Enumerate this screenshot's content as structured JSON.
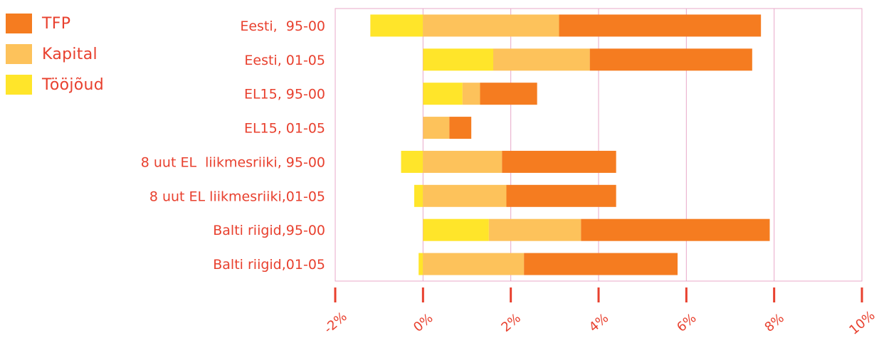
{
  "chart_data": {
    "type": "bar",
    "orientation": "horizontal",
    "stacked": true,
    "categories": [
      "Eesti,  95-00",
      "Eesti, 01-05",
      "EL15, 95-00",
      "EL15, 01-05",
      "8 uut EL  liikmesriiki, 95-00",
      "8 uut EL liikmesriiki,01-05",
      "Balti riigid,95-00",
      "Balti riigid,01-05"
    ],
    "series": [
      {
        "name": "Tööjõud",
        "color": "#ffe52a",
        "values": [
          -1.2,
          1.6,
          0.9,
          0.0,
          -0.5,
          -0.2,
          1.5,
          -0.1
        ]
      },
      {
        "name": "Kapital",
        "color": "#fdc25b",
        "values": [
          3.1,
          2.2,
          0.4,
          0.6,
          1.8,
          1.9,
          2.1,
          2.3
        ]
      },
      {
        "name": "TFP",
        "color": "#f57c20",
        "values": [
          4.6,
          3.7,
          1.3,
          0.5,
          2.6,
          2.5,
          4.3,
          3.5
        ]
      }
    ],
    "legend_order": [
      "TFP",
      "Kapital",
      "Tööjõud"
    ],
    "legend_position": "top-left",
    "xlim": [
      -2,
      10
    ],
    "xticks": [
      "-2%",
      "0%",
      "2%",
      "4%",
      "6%",
      "8%",
      "10%"
    ],
    "xtick_values": [
      -2,
      0,
      2,
      4,
      6,
      8,
      10
    ],
    "grid": true,
    "colors": {
      "text": "#e8402e",
      "grid": "#e8a8c8",
      "axis_ticks": "#e8402e"
    }
  }
}
